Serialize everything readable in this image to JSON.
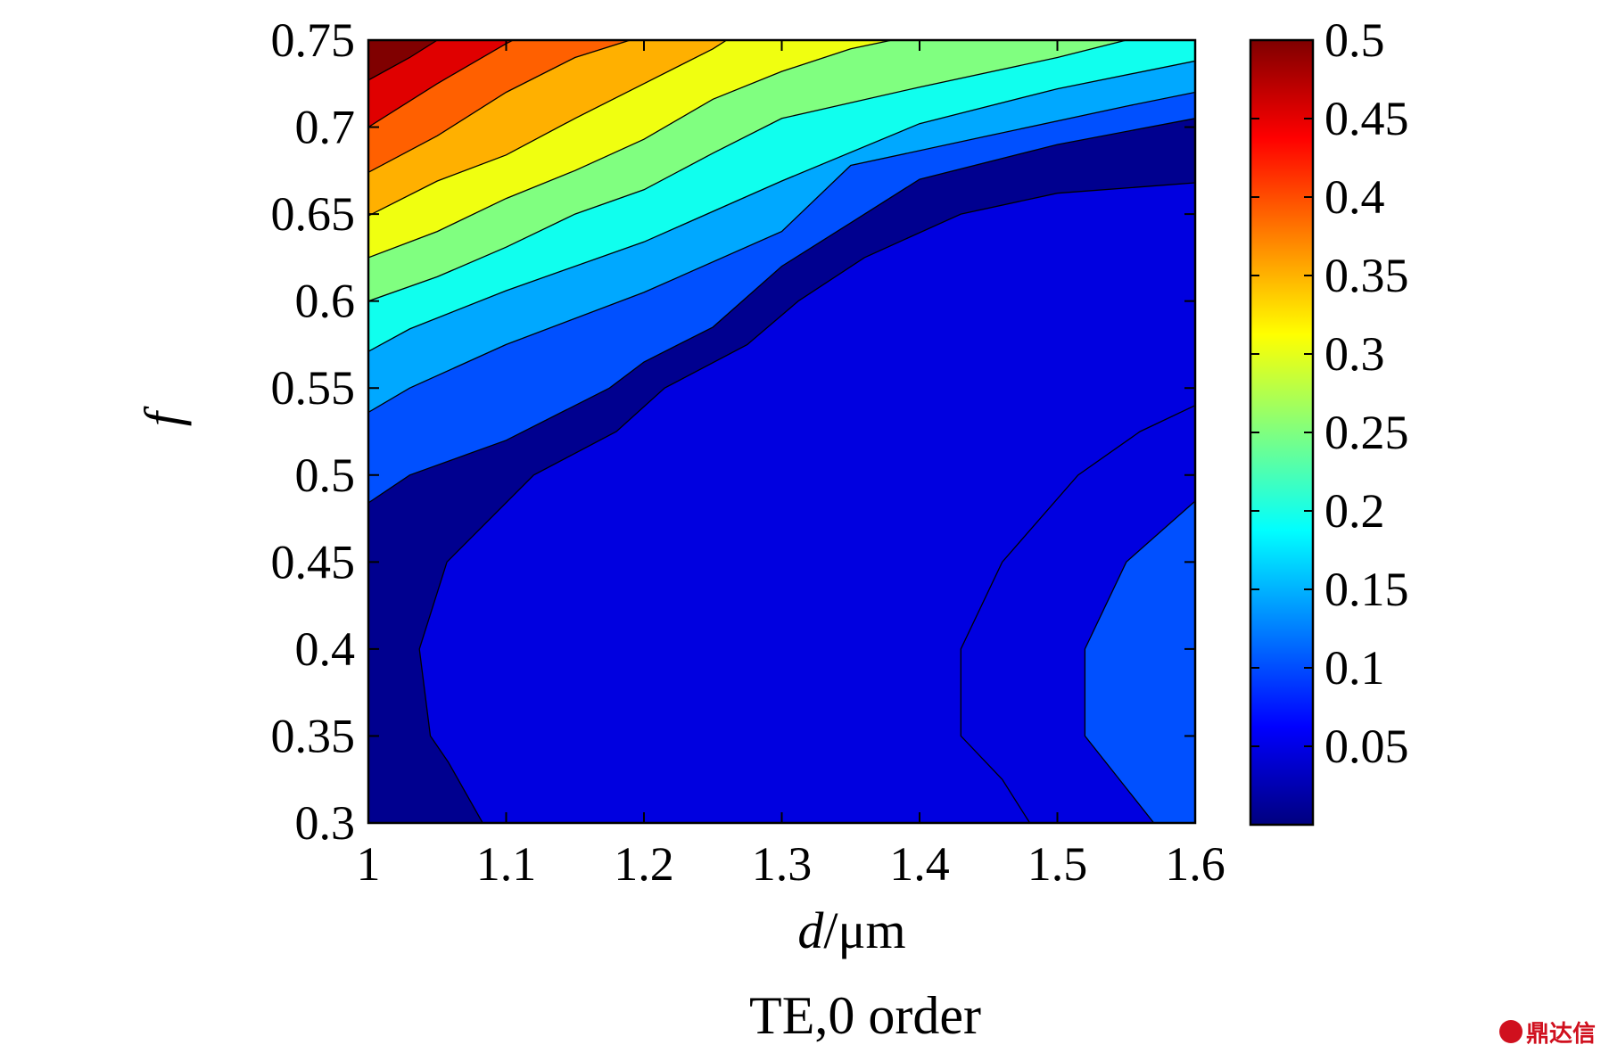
{
  "caption": "TE,0 order",
  "watermark": "鼎达信",
  "chart_data": {
    "type": "heatmap",
    "subtype": "filled-contour",
    "xlabel": {
      "italic": "d",
      "rest": "/μm"
    },
    "ylabel": "f",
    "xlim": [
      1,
      1.6
    ],
    "ylim": [
      0.3,
      0.75
    ],
    "xticks": [
      1,
      1.1,
      1.2,
      1.3,
      1.4,
      1.5,
      1.6
    ],
    "xtick_labels": [
      "1",
      "1.1",
      "1.2",
      "1.3",
      "1.4",
      "1.5",
      "1.6"
    ],
    "yticks": [
      0.3,
      0.35,
      0.4,
      0.45,
      0.5,
      0.55,
      0.6,
      0.65,
      0.7,
      0.75
    ],
    "ytick_labels": [
      "0.3",
      "0.35",
      "0.4",
      "0.45",
      "0.5",
      "0.55",
      "0.6",
      "0.65",
      "0.7",
      "0.75"
    ],
    "colorbar": {
      "colormap": "jet",
      "range": [
        0,
        0.5
      ],
      "ticks": [
        0.05,
        0.1,
        0.15,
        0.2,
        0.25,
        0.3,
        0.35,
        0.4,
        0.45,
        0.5
      ],
      "tick_labels": [
        "0.05",
        "0.1",
        "0.15",
        "0.2",
        "0.25",
        "0.3",
        "0.35",
        "0.4",
        "0.45",
        "0.5"
      ]
    },
    "grid": false,
    "levels": [
      {
        "value": 0.0,
        "color": "#00008f"
      },
      {
        "value": 0.05,
        "color": "#0000e0"
      },
      {
        "value": 0.1,
        "color": "#0050ff"
      },
      {
        "value": 0.15,
        "color": "#00a8ff"
      },
      {
        "value": 0.2,
        "color": "#10ffee"
      },
      {
        "value": 0.25,
        "color": "#80ff80"
      },
      {
        "value": 0.3,
        "color": "#f0ff10"
      },
      {
        "value": 0.35,
        "color": "#ffb000"
      },
      {
        "value": 0.4,
        "color": "#ff6000"
      },
      {
        "value": 0.45,
        "color": "#e00000"
      },
      {
        "value": 0.5,
        "color": "#800000"
      }
    ],
    "region_boundaries": [
      {
        "level": 0.05,
        "points": [
          [
            1.083,
            0.3
          ],
          [
            1.058,
            0.335
          ],
          [
            1.045,
            0.35
          ],
          [
            1.037,
            0.4
          ],
          [
            1.057,
            0.45
          ],
          [
            1.12,
            0.5
          ],
          [
            1.18,
            0.525
          ],
          [
            1.215,
            0.55
          ],
          [
            1.275,
            0.575
          ],
          [
            1.312,
            0.6
          ],
          [
            1.36,
            0.625
          ],
          [
            1.43,
            0.65
          ],
          [
            1.5,
            0.662
          ],
          [
            1.6,
            0.668
          ]
        ]
      },
      {
        "level": 0.05,
        "points": [
          [
            1.48,
            0.3
          ],
          [
            1.46,
            0.325
          ],
          [
            1.43,
            0.35
          ],
          [
            1.43,
            0.4
          ],
          [
            1.46,
            0.45
          ],
          [
            1.515,
            0.5
          ],
          [
            1.56,
            0.525
          ],
          [
            1.6,
            0.54
          ]
        ]
      },
      {
        "level": 0.1,
        "points": [
          [
            1.57,
            0.3
          ],
          [
            1.55,
            0.32
          ],
          [
            1.52,
            0.35
          ],
          [
            1.52,
            0.4
          ],
          [
            1.55,
            0.45
          ],
          [
            1.6,
            0.485
          ]
        ]
      },
      {
        "level": 0.1,
        "points": [
          [
            1.0,
            0.484
          ],
          [
            1.03,
            0.5
          ],
          [
            1.1,
            0.52
          ],
          [
            1.175,
            0.55
          ],
          [
            1.2,
            0.565
          ],
          [
            1.25,
            0.585
          ],
          [
            1.3,
            0.62
          ],
          [
            1.35,
            0.645
          ],
          [
            1.4,
            0.67
          ],
          [
            1.5,
            0.69
          ],
          [
            1.6,
            0.705
          ]
        ]
      },
      {
        "level": 0.15,
        "points": [
          [
            1.0,
            0.536
          ],
          [
            1.03,
            0.55
          ],
          [
            1.1,
            0.575
          ],
          [
            1.2,
            0.605
          ],
          [
            1.3,
            0.64
          ],
          [
            1.35,
            0.678
          ],
          [
            1.45,
            0.695
          ],
          [
            1.55,
            0.712
          ],
          [
            1.6,
            0.72
          ]
        ]
      },
      {
        "level": 0.2,
        "points": [
          [
            1.0,
            0.571
          ],
          [
            1.03,
            0.584
          ],
          [
            1.1,
            0.606
          ],
          [
            1.2,
            0.634
          ],
          [
            1.3,
            0.669
          ],
          [
            1.4,
            0.702
          ],
          [
            1.5,
            0.722
          ],
          [
            1.6,
            0.738
          ]
        ]
      },
      {
        "level": 0.25,
        "points": [
          [
            1.0,
            0.6
          ],
          [
            1.05,
            0.614
          ],
          [
            1.1,
            0.631
          ],
          [
            1.15,
            0.65
          ],
          [
            1.2,
            0.664
          ],
          [
            1.25,
            0.685
          ],
          [
            1.3,
            0.705
          ],
          [
            1.4,
            0.723
          ],
          [
            1.5,
            0.74
          ],
          [
            1.55,
            0.75
          ]
        ]
      },
      {
        "level": 0.3,
        "points": [
          [
            1.0,
            0.625
          ],
          [
            1.05,
            0.64
          ],
          [
            1.1,
            0.659
          ],
          [
            1.15,
            0.675
          ],
          [
            1.2,
            0.693
          ],
          [
            1.25,
            0.716
          ],
          [
            1.3,
            0.732
          ],
          [
            1.35,
            0.745
          ],
          [
            1.38,
            0.75
          ]
        ]
      },
      {
        "level": 0.35,
        "points": [
          [
            1.0,
            0.649
          ],
          [
            1.05,
            0.669
          ],
          [
            1.1,
            0.684
          ],
          [
            1.15,
            0.705
          ],
          [
            1.2,
            0.725
          ],
          [
            1.25,
            0.745
          ],
          [
            1.26,
            0.75
          ]
        ]
      },
      {
        "level": 0.4,
        "points": [
          [
            1.0,
            0.674
          ],
          [
            1.05,
            0.695
          ],
          [
            1.1,
            0.72
          ],
          [
            1.15,
            0.74
          ],
          [
            1.19,
            0.75
          ]
        ]
      },
      {
        "level": 0.45,
        "points": [
          [
            1.0,
            0.7
          ],
          [
            1.05,
            0.725
          ],
          [
            1.1,
            0.748
          ],
          [
            1.105,
            0.75
          ]
        ]
      },
      {
        "level": 0.5,
        "points": [
          [
            1.0,
            0.727
          ],
          [
            1.03,
            0.74
          ],
          [
            1.05,
            0.75
          ]
        ]
      }
    ]
  }
}
